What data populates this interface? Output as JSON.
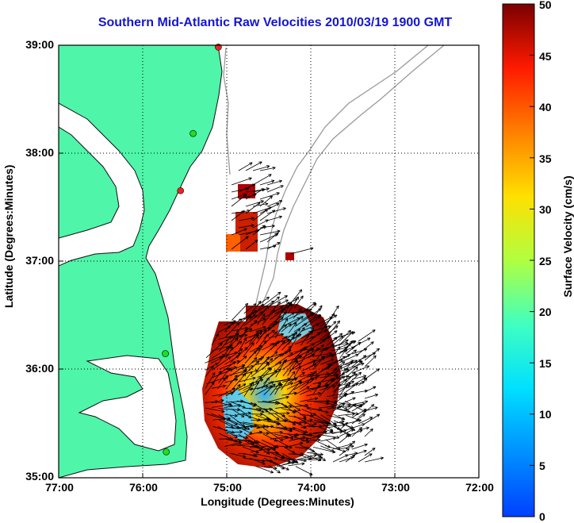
{
  "title": "Southern Mid-Atlantic Raw Velocities 2010/03/19 1900 GMT",
  "axes": {
    "xlabel": "Longitude (Degrees:Minutes)",
    "ylabel": "Latitude (Degrees:Minutes)",
    "xticks": [
      "77:00",
      "76:00",
      "75:00",
      "74:00",
      "73:00",
      "72:00"
    ],
    "yticks": [
      "39:00",
      "38:00",
      "37:00",
      "36:00",
      "35:00"
    ],
    "grid": "dotted"
  },
  "colorbar": {
    "label": "Surface Velocity (cm/s)",
    "ticks": [
      "50",
      "45",
      "40",
      "35",
      "30",
      "25",
      "20",
      "15",
      "10",
      "5",
      "0"
    ],
    "min": 0,
    "max": 50,
    "colormap": "jet"
  },
  "colors": {
    "land": "#4ff5a8",
    "water": "#ffffff",
    "title": "#1515d0",
    "bathymetry": "#9a9a9a",
    "station_green": "#22dd22",
    "station_red": "#ee2222"
  },
  "stations": [
    {
      "lat": 38.99,
      "lon": -75.1,
      "color": "red"
    },
    {
      "lat": 38.19,
      "lon": -75.4,
      "color": "green"
    },
    {
      "lat": 37.66,
      "lon": -75.55,
      "color": "red"
    },
    {
      "lat": 36.15,
      "lon": -75.73,
      "color": "green"
    },
    {
      "lat": 35.24,
      "lon": -75.72,
      "color": "green"
    }
  ]
}
